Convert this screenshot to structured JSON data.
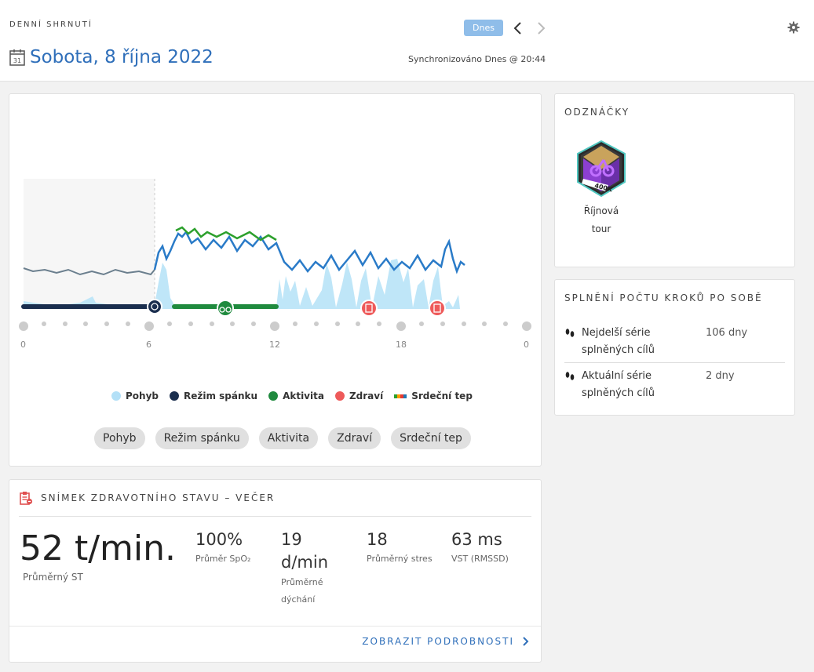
{
  "header": {
    "eyebrow": "DENNÍ SHRNUTÍ",
    "date": "Sobota, 8 října 2022",
    "calendar_day": "31",
    "today_label": "Dnes",
    "sync": "Synchronizováno Dnes @ 20:44"
  },
  "chart": {
    "axis_labels": [
      "0",
      "6",
      "12",
      "18",
      "0"
    ],
    "legend": [
      {
        "label": "Pohyb",
        "color": "#b3e0f7"
      },
      {
        "label": "Režim spánku",
        "color": "#1a2e4e"
      },
      {
        "label": "Aktivita",
        "color": "#1f8a3e"
      },
      {
        "label": "Zdraví",
        "color": "#ee5a5a"
      },
      {
        "label": "Srdeční tep",
        "color": "#1f77b4"
      }
    ],
    "filters": [
      "Pohyb",
      "Režim spánku",
      "Aktivita",
      "Zdraví",
      "Srdeční tep"
    ]
  },
  "health": {
    "title": "SNÍMEK ZDRAVOTNÍHO STAVU – VEČER",
    "heart_rate": {
      "value": "52 t/min.",
      "label": "Průměrný ST"
    },
    "spo2": {
      "value": "100%",
      "label": "Průměr SpO₂"
    },
    "breathing": {
      "value_line1": "19",
      "value_line2": "d/min",
      "label_line1": "Průměrné",
      "label_line2": "dýchání"
    },
    "stress": {
      "value": "18",
      "label": "Průměrný stres"
    },
    "hrv": {
      "value": "63 ms",
      "label": "VST (RMSSD)"
    },
    "details_link": "ZOBRAZIT PODROBNOSTI"
  },
  "badges": {
    "title": "ODZNÁČKY",
    "badge_text": "400K",
    "items": [
      {
        "name_line1": "Říjnová",
        "name_line2": "tour"
      }
    ]
  },
  "streak": {
    "title": "SPLNĚNÍ POČTU KROKŮ PO SOBĚ",
    "rows": [
      {
        "label_line1": "Nejdelší série",
        "label_line2": "splněných cílů",
        "value": "106 dny"
      },
      {
        "label_line1": "Aktuální série",
        "label_line2": "splněných cílů",
        "value": "2 dny"
      }
    ]
  }
}
